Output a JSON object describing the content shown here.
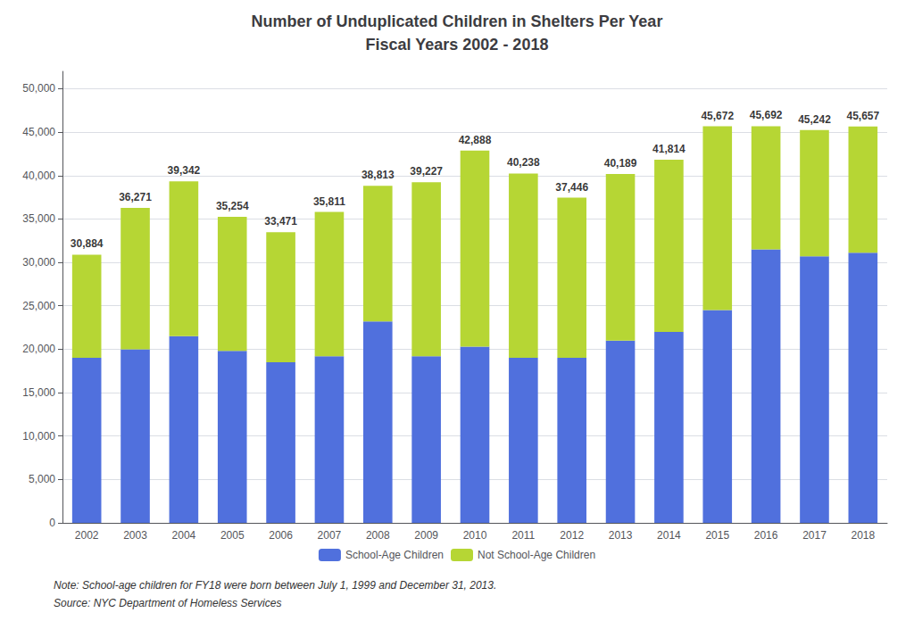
{
  "chart_data": {
    "type": "bar",
    "stacked": true,
    "title": "Number of Unduplicated Children in Shelters Per Year",
    "subtitle": "Fiscal Years 2002 - 2018",
    "categories": [
      "2002",
      "2003",
      "2004",
      "2005",
      "2006",
      "2007",
      "2008",
      "2009",
      "2010",
      "2011",
      "2012",
      "2013",
      "2014",
      "2015",
      "2016",
      "2017",
      "2018"
    ],
    "series": [
      {
        "name": "School-Age Children",
        "values": [
          19000,
          20000,
          21500,
          19800,
          18500,
          19200,
          23200,
          19200,
          20300,
          19000,
          19000,
          21000,
          22000,
          24500,
          31500,
          30700,
          31100
        ]
      },
      {
        "name": "Not School-Age Children",
        "values": [
          11884,
          16271,
          17842,
          15454,
          14971,
          16611,
          15613,
          20027,
          22588,
          21238,
          18446,
          19189,
          19814,
          21172,
          14192,
          14542,
          14557
        ]
      }
    ],
    "totals": [
      30884,
      36271,
      39342,
      35254,
      33471,
      35811,
      38813,
      39227,
      42888,
      40238,
      37446,
      40189,
      41814,
      45672,
      45692,
      45242,
      45657
    ],
    "total_labels": [
      "30,884",
      "36,271",
      "39,342",
      "35,254",
      "33,471",
      "35,811",
      "38,813",
      "39,227",
      "42,888",
      "40,238",
      "37,446",
      "40,189",
      "41,814",
      "45,672",
      "45,692",
      "45,242",
      "45,657"
    ],
    "ylim": [
      0,
      52000
    ],
    "yticks": [
      0,
      {
        "value": 5000,
        "label": "5,000"
      },
      {
        "value": 10000,
        "label": "10,000"
      },
      {
        "value": 15000,
        "label": "15,000"
      },
      {
        "value": 20000,
        "label": "20,000"
      },
      {
        "value": 25000,
        "label": "25,000"
      },
      {
        "value": 30000,
        "label": "30,000"
      },
      {
        "value": 35000,
        "label": "35,000"
      },
      {
        "value": 40000,
        "label": "40,000"
      },
      {
        "value": 45000,
        "label": "45,000"
      },
      {
        "value": 50000,
        "label": "50,000"
      }
    ],
    "grid": true,
    "legend": "bottom",
    "annotations": [
      "Note: School-age children for FY18 were born between July 1, 1999 and December 31, 2013.",
      "Source: NYC Department of Homeless Services"
    ]
  }
}
